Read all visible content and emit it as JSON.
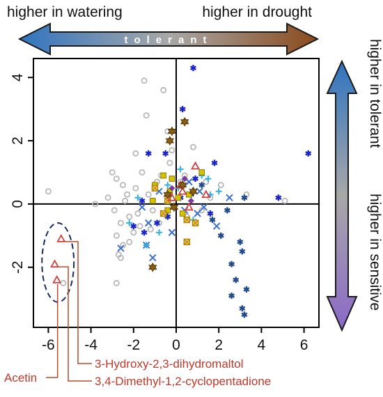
{
  "chart_data": {
    "type": "scatter",
    "xlim": [
      -6.7,
      6.7
    ],
    "ylim": [
      -3.9,
      4.6
    ],
    "xticks": [
      "-6",
      "-4",
      "-2",
      "0",
      "2",
      "4",
      "6"
    ],
    "xtick_values": [
      -6,
      -4,
      -2,
      0,
      2,
      4,
      6
    ],
    "yticks": [
      "-2",
      "0",
      "2",
      "4"
    ],
    "ytick_values": [
      -2,
      0,
      2,
      4
    ],
    "grid": false,
    "crosshair_at_origin": true,
    "top_arrow": {
      "left_label": "higher in watering",
      "right_label": "higher in drought",
      "center_label": "tolerant",
      "color_left": "#2f74c0",
      "color_right": "#8b4a1c"
    },
    "right_arrow": {
      "top_label": "higher in tolerant",
      "bottom_label": "higher in sensitive",
      "color_top": "#2f74c0",
      "color_mid": "#a8a8a8",
      "color_bottom": "#8a68c8"
    },
    "callouts": [
      {
        "text": "Acetin",
        "point": [
          -5.6,
          -2.4
        ]
      },
      {
        "text": "3-Hydroxy-2,3-dihydromaltol",
        "point": [
          -5.4,
          -1.1
        ]
      },
      {
        "text": "3,4-Dimethyl-1,2-cyclopentadione",
        "point": [
          -5.7,
          -1.9
        ]
      }
    ],
    "highlight_ellipse": {
      "center": [
        -5.55,
        -1.85
      ],
      "rx": 0.75,
      "ry": 1.25
    },
    "series": [
      {
        "marker": "circle",
        "color": "#b8b8b8",
        "points": [
          [
            -6,
            0.4
          ],
          [
            -3.8,
            0
          ],
          [
            -3,
            1
          ],
          [
            -2.8,
            0.8
          ],
          [
            -3.2,
            0.2
          ],
          [
            -2.9,
            -0.2
          ],
          [
            -2.6,
            -0.6
          ],
          [
            -2.8,
            -1
          ],
          [
            -2.5,
            -1.3
          ],
          [
            -2.7,
            -1.6
          ],
          [
            -2.6,
            -1.7
          ],
          [
            -2.8,
            -2.5
          ],
          [
            -2.2,
            -1.2
          ],
          [
            -2,
            -0.9
          ],
          [
            -1.8,
            -0.3
          ],
          [
            -1.9,
            0.5
          ],
          [
            -2.3,
            0.3
          ],
          [
            -1.6,
            1
          ],
          [
            -1.9,
            1.6
          ],
          [
            -1.5,
            3.9
          ],
          [
            -0.6,
            3.6
          ],
          [
            -1.4,
            2.8
          ],
          [
            -0.4,
            2.3
          ],
          [
            -0.3,
            1.3
          ],
          [
            -0.7,
            0.9
          ],
          [
            -1.3,
            0.3
          ],
          [
            -1.1,
            -0.2
          ],
          [
            -0.9,
            0.7
          ],
          [
            -0.3,
            0.3
          ],
          [
            0.2,
            0.7
          ],
          [
            0.8,
            1.8
          ],
          [
            1.4,
            0.7
          ],
          [
            1.6,
            0.2
          ],
          [
            2.1,
            0.6
          ],
          [
            3.3,
            0.3
          ],
          [
            5.1,
            0.1
          ],
          [
            -5.3,
            -2.5
          ],
          [
            -2.4,
            0.1
          ],
          [
            -1.7,
            -0.7
          ],
          [
            -2.2,
            -0.4
          ],
          [
            -1.2,
            -0.8
          ],
          [
            -0.8,
            -0.6
          ],
          [
            0.5,
            -0.4
          ],
          [
            1.2,
            -0.2
          ],
          [
            -0.2,
            1.7
          ],
          [
            0.4,
            0.9
          ],
          [
            -2.5,
            0.6
          ]
        ]
      },
      {
        "marker": "star",
        "color": "#1a24c8",
        "points": [
          [
            0.8,
            4.3
          ],
          [
            0.3,
            3
          ],
          [
            -1.3,
            1.6
          ],
          [
            -0.5,
            1.6
          ],
          [
            1.8,
            1.3
          ],
          [
            6.2,
            1.6
          ],
          [
            4.8,
            0.2
          ],
          [
            -1.5,
            -0.9
          ],
          [
            -2,
            -0.7
          ],
          [
            -0.9,
            -0.6
          ],
          [
            0.9,
            0.8
          ],
          [
            1.6,
            -0.3
          ],
          [
            -0.4,
            -0.4
          ],
          [
            0.2,
            0.2
          ],
          [
            -1.6,
            0.1
          ]
        ]
      },
      {
        "marker": "asterisk",
        "color": "#1f4a8c",
        "points": [
          [
            2.4,
            -0.2
          ],
          [
            2.1,
            -1
          ],
          [
            3.2,
            0.2
          ],
          [
            3,
            -1.2
          ],
          [
            3.1,
            -1.5
          ],
          [
            2.6,
            -1.9
          ],
          [
            2.8,
            -2.4
          ],
          [
            3.3,
            -2.7
          ],
          [
            2.6,
            -2.9
          ],
          [
            3.1,
            -3.3
          ],
          [
            3.2,
            -3.5
          ],
          [
            1.7,
            -0.5
          ],
          [
            1.2,
            0.6
          ],
          [
            0.7,
            0.3
          ]
        ]
      },
      {
        "marker": "x",
        "color": "#3b6fd0",
        "points": [
          [
            -1.6,
            -0.1
          ],
          [
            -1.3,
            -0.6
          ],
          [
            -1.1,
            -1.7
          ],
          [
            -2.6,
            -1.4
          ],
          [
            -0.8,
            0.4
          ],
          [
            0.4,
            -0.2
          ],
          [
            1.1,
            0.4
          ],
          [
            1.9,
            -0.7
          ],
          [
            2.5,
            0.2
          ],
          [
            1,
            -0.3
          ],
          [
            -0.2,
            -0.9
          ],
          [
            0.6,
            0.7
          ],
          [
            1.3,
            -0.1
          ],
          [
            -1.4,
            -1.3
          ]
        ]
      },
      {
        "marker": "plus",
        "color": "#2fb0e0",
        "points": [
          [
            -2.2,
            -0.6
          ],
          [
            -1.4,
            -1.3
          ],
          [
            -0.8,
            -0.9
          ],
          [
            0.2,
            1.1
          ],
          [
            1.2,
            0.9
          ],
          [
            2,
            0.4
          ],
          [
            1.5,
            0.8
          ],
          [
            -0.4,
            0.6
          ],
          [
            0.8,
            -0.5
          ],
          [
            -1.8,
            0.2
          ],
          [
            0.1,
            0.5
          ],
          [
            1.6,
            0.3
          ]
        ]
      },
      {
        "marker": "square",
        "color": "#d4c400",
        "points": [
          [
            -0.6,
            0.9
          ],
          [
            -1,
            0.6
          ],
          [
            -0.3,
            0.4
          ],
          [
            0.1,
            0.2
          ],
          [
            -0.4,
            -0.2
          ],
          [
            0.3,
            -0.3
          ],
          [
            -1.1,
            0.1
          ],
          [
            0.6,
            0.3
          ],
          [
            -0.2,
            0.8
          ],
          [
            1.2,
            1
          ]
        ]
      },
      {
        "marker": "square-x",
        "color": "#b88400",
        "points": [
          [
            -1,
            0.5
          ],
          [
            0.5,
            -0.5
          ],
          [
            -0.4,
            0.1
          ],
          [
            0.9,
            -0.6
          ],
          [
            0.5,
            -1.2
          ],
          [
            -0.6,
            -0.3
          ]
        ]
      },
      {
        "marker": "triangle",
        "color": "#d04040",
        "points": [
          [
            -5.4,
            -1.1
          ],
          [
            -5.7,
            -1.9
          ],
          [
            -5.6,
            -2.4
          ],
          [
            0.9,
            1.2
          ],
          [
            0.2,
            0.6
          ],
          [
            0.3,
            0.4
          ],
          [
            0.6,
            -0.1
          ],
          [
            1.4,
            0.3
          ],
          [
            -0.2,
            0.2
          ]
        ]
      },
      {
        "marker": "star-of-david",
        "color": "#8b6010",
        "points": [
          [
            0.4,
            2.6
          ],
          [
            -0.2,
            2.3
          ],
          [
            -0.3,
            2
          ],
          [
            -1.1,
            -2
          ],
          [
            0.3,
            0.6
          ],
          [
            -0.4,
            0.3
          ],
          [
            0.8,
            0.4
          ],
          [
            -0.1,
            -0.1
          ]
        ]
      },
      {
        "marker": "diamond",
        "color": "#7a3a9a",
        "points": [
          [
            0.7,
            0.1
          ],
          [
            -0.2,
            0.5
          ],
          [
            0.4,
            0.8
          ]
        ]
      }
    ]
  }
}
